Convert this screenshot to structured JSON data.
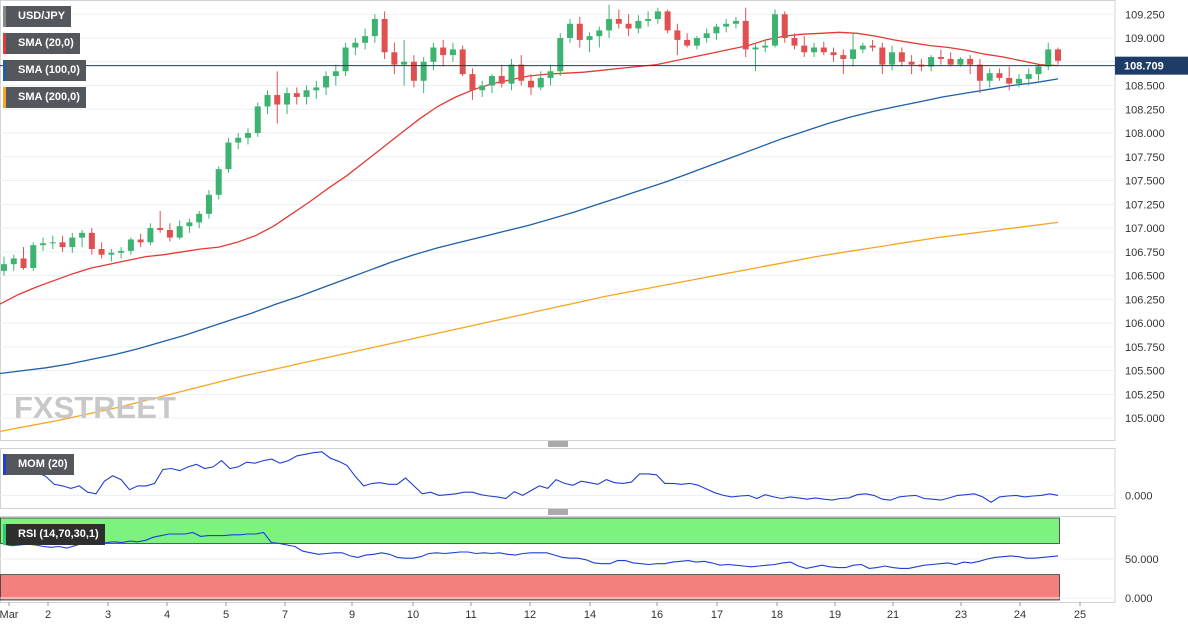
{
  "legend": {
    "symbol": "USD/JPY",
    "sma20": "SMA (20,0)",
    "sma100": "SMA (100,0)",
    "sma200": "SMA (200,0)",
    "mom": "MOM (20)",
    "rsi": "RSI (14,70,30,1)"
  },
  "watermark": "FXSTREET",
  "colors": {
    "up": "#3cb371",
    "down": "#e05050",
    "sma20": "#e53935",
    "sma100": "#1f5fa8",
    "sma200": "#f5a623",
    "indicator": "#1f3fd6",
    "rsi_overbought": "#7ef27e",
    "rsi_oversold": "#f47f7f"
  },
  "chart_data": [
    {
      "type": "candlestick",
      "title": "USD/JPY",
      "y_ticks": [
        "105.000",
        "105.250",
        "105.500",
        "105.750",
        "106.000",
        "106.250",
        "106.500",
        "106.750",
        "107.000",
        "107.250",
        "107.500",
        "107.750",
        "108.000",
        "108.250",
        "108.500",
        "108.750",
        "109.000",
        "109.250"
      ],
      "ylim": [
        104.77,
        109.4
      ],
      "x_labels": [
        "Mar",
        "2",
        "3",
        "4",
        "5",
        "7",
        "9",
        "10",
        "11",
        "12",
        "14",
        "16",
        "17",
        "18",
        "19",
        "21",
        "23",
        "24",
        "25"
      ],
      "last_price": "108.709",
      "candles": [
        [
          106.55,
          106.7,
          106.5,
          106.62
        ],
        [
          106.62,
          106.72,
          106.55,
          106.68
        ],
        [
          106.68,
          106.8,
          106.56,
          106.58
        ],
        [
          106.58,
          106.85,
          106.55,
          106.82
        ],
        [
          106.82,
          106.9,
          106.76,
          106.84
        ],
        [
          106.84,
          106.92,
          106.78,
          106.85
        ],
        [
          106.85,
          106.92,
          106.75,
          106.8
        ],
        [
          106.8,
          106.95,
          106.74,
          106.9
        ],
        [
          106.9,
          106.98,
          106.8,
          106.95
        ],
        [
          106.95,
          107.0,
          106.72,
          106.78
        ],
        [
          106.78,
          106.85,
          106.68,
          106.72
        ],
        [
          106.72,
          106.78,
          106.65,
          106.74
        ],
        [
          106.74,
          106.8,
          106.68,
          106.76
        ],
        [
          106.76,
          106.9,
          106.72,
          106.88
        ],
        [
          106.88,
          106.94,
          106.8,
          106.85
        ],
        [
          106.85,
          107.05,
          106.82,
          107.0
        ],
        [
          107.0,
          107.18,
          106.95,
          106.98
        ],
        [
          106.98,
          107.05,
          106.86,
          106.9
        ],
        [
          106.9,
          107.08,
          106.88,
          107.02
        ],
        [
          107.02,
          107.1,
          106.95,
          107.06
        ],
        [
          107.06,
          107.18,
          107.0,
          107.15
        ],
        [
          107.15,
          107.4,
          107.1,
          107.35
        ],
        [
          107.35,
          107.65,
          107.3,
          107.62
        ],
        [
          107.62,
          107.95,
          107.58,
          107.9
        ],
        [
          107.9,
          108.0,
          107.83,
          107.95
        ],
        [
          107.95,
          108.05,
          107.88,
          108.0
        ],
        [
          108.0,
          108.32,
          107.96,
          108.28
        ],
        [
          108.28,
          108.45,
          108.2,
          108.4
        ],
        [
          108.4,
          108.65,
          108.1,
          108.3
        ],
        [
          108.3,
          108.48,
          108.2,
          108.42
        ],
        [
          108.42,
          108.48,
          108.3,
          108.38
        ],
        [
          108.38,
          108.5,
          108.3,
          108.45
        ],
        [
          108.45,
          108.55,
          108.36,
          108.48
        ],
        [
          108.48,
          108.65,
          108.4,
          108.6
        ],
        [
          108.6,
          108.72,
          108.5,
          108.65
        ],
        [
          108.65,
          108.95,
          108.6,
          108.9
        ],
        [
          108.9,
          109.0,
          108.82,
          108.95
        ],
        [
          108.95,
          109.1,
          108.88,
          109.02
        ],
        [
          109.02,
          109.25,
          108.95,
          109.2
        ],
        [
          109.2,
          109.28,
          108.78,
          108.85
        ],
        [
          108.85,
          108.95,
          108.62,
          108.72
        ],
        [
          108.72,
          108.98,
          108.5,
          108.75
        ],
        [
          108.75,
          108.82,
          108.48,
          108.55
        ],
        [
          108.55,
          108.8,
          108.42,
          108.75
        ],
        [
          108.75,
          108.95,
          108.66,
          108.9
        ],
        [
          108.9,
          108.98,
          108.7,
          108.82
        ],
        [
          108.82,
          108.95,
          108.75,
          108.88
        ],
        [
          108.88,
          108.92,
          108.6,
          108.62
        ],
        [
          108.62,
          108.68,
          108.35,
          108.45
        ],
        [
          108.45,
          108.55,
          108.38,
          108.5
        ],
        [
          108.5,
          108.62,
          108.42,
          108.6
        ],
        [
          108.6,
          108.72,
          108.48,
          108.52
        ],
        [
          108.52,
          108.78,
          108.45,
          108.72
        ],
        [
          108.72,
          108.82,
          108.5,
          108.55
        ],
        [
          108.55,
          108.62,
          108.4,
          108.48
        ],
        [
          108.48,
          108.65,
          108.45,
          108.58
        ],
        [
          108.58,
          108.72,
          108.5,
          108.65
        ],
        [
          108.65,
          109.05,
          108.6,
          109.0
        ],
        [
          109.0,
          109.2,
          108.95,
          109.15
        ],
        [
          109.15,
          109.22,
          108.9,
          108.98
        ],
        [
          108.98,
          109.06,
          108.85,
          109.02
        ],
        [
          109.02,
          109.12,
          108.9,
          109.08
        ],
        [
          109.08,
          109.35,
          109.0,
          109.2
        ],
        [
          109.2,
          109.3,
          109.1,
          109.15
        ],
        [
          109.15,
          109.25,
          109.02,
          109.1
        ],
        [
          109.1,
          109.24,
          109.05,
          109.18
        ],
        [
          109.18,
          109.28,
          109.12,
          109.2
        ],
        [
          109.2,
          109.32,
          109.15,
          109.28
        ],
        [
          109.28,
          109.3,
          109.05,
          109.08
        ],
        [
          109.08,
          109.15,
          108.82,
          108.98
        ],
        [
          108.98,
          109.05,
          108.9,
          108.92
        ],
        [
          108.92,
          109.02,
          108.88,
          109.0
        ],
        [
          109.0,
          109.1,
          108.95,
          109.05
        ],
        [
          109.05,
          109.15,
          108.98,
          109.12
        ],
        [
          109.12,
          109.2,
          109.06,
          109.15
        ],
        [
          109.15,
          109.22,
          109.1,
          109.18
        ],
        [
          109.18,
          109.32,
          108.8,
          108.88
        ],
        [
          108.88,
          108.95,
          108.65,
          108.9
        ],
        [
          108.9,
          108.98,
          108.85,
          108.92
        ],
        [
          108.92,
          109.3,
          108.9,
          109.25
        ],
        [
          109.25,
          109.28,
          108.95,
          109.0
        ],
        [
          109.0,
          109.05,
          108.88,
          108.92
        ],
        [
          108.92,
          109.02,
          108.8,
          108.85
        ],
        [
          108.85,
          108.95,
          108.8,
          108.9
        ],
        [
          108.9,
          108.96,
          108.82,
          108.85
        ],
        [
          108.85,
          108.9,
          108.75,
          108.82
        ],
        [
          108.82,
          108.88,
          108.62,
          108.78
        ],
        [
          108.78,
          109.05,
          108.7,
          108.88
        ],
        [
          108.88,
          108.95,
          108.84,
          108.92
        ],
        [
          108.92,
          108.98,
          108.86,
          108.9
        ],
        [
          108.9,
          108.95,
          108.62,
          108.72
        ],
        [
          108.72,
          108.92,
          108.66,
          108.85
        ],
        [
          108.85,
          108.9,
          108.7,
          108.75
        ],
        [
          108.75,
          108.82,
          108.62,
          108.72
        ],
        [
          108.72,
          108.78,
          108.65,
          108.7
        ],
        [
          108.7,
          108.82,
          108.65,
          108.8
        ],
        [
          108.8,
          108.88,
          108.72,
          108.78
        ],
        [
          108.78,
          108.85,
          108.7,
          108.72
        ],
        [
          108.72,
          108.8,
          108.7,
          108.78
        ],
        [
          108.78,
          108.82,
          108.62,
          108.72
        ],
        [
          108.72,
          108.78,
          108.42,
          108.55
        ],
        [
          108.55,
          108.68,
          108.48,
          108.63
        ],
        [
          108.63,
          108.68,
          108.55,
          108.58
        ],
        [
          108.58,
          108.7,
          108.45,
          108.52
        ],
        [
          108.52,
          108.62,
          108.48,
          108.57
        ],
        [
          108.57,
          108.68,
          108.5,
          108.62
        ],
        [
          108.62,
          108.72,
          108.55,
          108.7
        ],
        [
          108.7,
          108.95,
          108.66,
          108.88
        ],
        [
          108.88,
          108.9,
          108.72,
          108.76
        ]
      ],
      "series": [
        {
          "name": "SMA (20,0)",
          "values": [
            106.2,
            106.3,
            106.38,
            106.45,
            106.52,
            106.58,
            106.62,
            106.66,
            106.7,
            106.72,
            106.75,
            106.78,
            106.8,
            106.85,
            106.92,
            107.02,
            107.15,
            107.28,
            107.42,
            107.55,
            107.7,
            107.85,
            108.0,
            108.15,
            108.28,
            108.38,
            108.46,
            108.52,
            108.56,
            108.6,
            108.62,
            108.63,
            108.64,
            108.66,
            108.68,
            108.7,
            108.72,
            108.76,
            108.8,
            108.84,
            108.88,
            108.92,
            108.98,
            109.02,
            109.04,
            109.05,
            109.06,
            109.05,
            109.02,
            108.98,
            108.95,
            108.92,
            108.9,
            108.87,
            108.83,
            108.8,
            108.76,
            108.72,
            108.71
          ]
        },
        {
          "name": "SMA (100,0)",
          "values": [
            105.47,
            105.5,
            105.53,
            105.57,
            105.62,
            105.67,
            105.73,
            105.8,
            105.87,
            105.95,
            106.03,
            106.11,
            106.2,
            106.28,
            106.37,
            106.46,
            106.55,
            106.64,
            106.72,
            106.79,
            106.85,
            106.91,
            106.97,
            107.03,
            107.1,
            107.17,
            107.25,
            107.33,
            107.41,
            107.49,
            107.58,
            107.67,
            107.76,
            107.85,
            107.94,
            108.02,
            108.1,
            108.17,
            108.23,
            108.28,
            108.33,
            108.38,
            108.42,
            108.46,
            108.5,
            108.53,
            108.57
          ]
        },
        {
          "name": "SMA (200,0)",
          "values": [
            104.86,
            104.92,
            104.98,
            105.05,
            105.12,
            105.2,
            105.28,
            105.36,
            105.44,
            105.51,
            105.58,
            105.65,
            105.72,
            105.79,
            105.86,
            105.93,
            106.0,
            106.07,
            106.14,
            106.21,
            106.28,
            106.34,
            106.4,
            106.46,
            106.52,
            106.58,
            106.64,
            106.7,
            106.75,
            106.8,
            106.85,
            106.9,
            106.94,
            106.98,
            107.02,
            107.06
          ]
        }
      ]
    },
    {
      "type": "line",
      "title": "MOM (20)",
      "y_ticks": [
        "0.000"
      ],
      "ylim": [
        -0.4,
        1.5
      ],
      "values": [
        0.78,
        0.72,
        0.75,
        0.78,
        0.72,
        0.6,
        0.35,
        0.3,
        0.22,
        0.3,
        0.1,
        0.05,
        0.45,
        0.62,
        0.5,
        0.18,
        0.3,
        0.3,
        0.38,
        0.82,
        0.85,
        0.78,
        0.9,
        0.98,
        0.85,
        0.9,
        1.1,
        0.85,
        0.9,
        1.05,
        1.02,
        1.1,
        1.15,
        1.02,
        1.1,
        1.25,
        1.3,
        1.35,
        1.38,
        1.18,
        1.08,
        0.95,
        0.6,
        0.3,
        0.38,
        0.4,
        0.35,
        0.35,
        0.55,
        0.3,
        0.05,
        0.1,
        0.0,
        0.02,
        0.05,
        0.1,
        0.1,
        0.02,
        -0.02,
        -0.05,
        -0.1,
        0.12,
        0.0,
        0.15,
        0.3,
        0.22,
        0.5,
        0.38,
        0.32,
        0.45,
        0.4,
        0.35,
        0.5,
        0.4,
        0.38,
        0.42,
        0.68,
        0.68,
        0.65,
        0.38,
        0.38,
        0.35,
        0.38,
        0.32,
        0.2,
        0.08,
        0.0,
        -0.05,
        -0.02,
        0.0,
        -0.1,
        0.02,
        -0.05,
        -0.1,
        -0.05,
        -0.08,
        -0.12,
        -0.08,
        -0.12,
        -0.15,
        -0.1,
        -0.08,
        0.02,
        0.05,
        0.0,
        -0.12,
        -0.15,
        -0.05,
        -0.02,
        0.0,
        -0.1,
        -0.12,
        -0.15,
        -0.08,
        0.0,
        0.02,
        0.05,
        -0.05,
        -0.22,
        -0.05,
        -0.02,
        0.0,
        -0.05,
        -0.02,
        0.0,
        0.05,
        0.0
      ]
    },
    {
      "type": "line",
      "title": "RSI (14,70,30,1)",
      "y_ticks": [
        "50.000",
        "0.000"
      ],
      "ylim": [
        0,
        100
      ],
      "overbought": 70,
      "oversold": 30,
      "values": [
        69,
        67,
        68,
        69,
        68,
        66,
        65,
        66,
        64,
        67,
        70,
        69,
        69,
        71,
        72,
        71,
        73,
        72,
        74,
        78,
        80,
        82,
        82,
        82,
        84,
        79,
        80,
        80,
        80,
        81,
        81,
        82,
        82,
        84,
        71,
        70,
        68,
        66,
        60,
        58,
        56,
        57,
        58,
        58,
        54,
        52,
        55,
        56,
        58,
        56,
        52,
        51,
        51,
        53,
        57,
        58,
        57,
        58,
        59,
        59,
        57,
        58,
        57,
        58,
        56,
        55,
        57,
        58,
        58,
        58,
        55,
        52,
        51,
        51,
        49,
        45,
        44,
        44,
        48,
        48,
        45,
        44,
        43,
        44,
        44,
        46,
        47,
        48,
        46,
        47,
        45,
        42,
        43,
        42,
        41,
        40,
        41,
        42,
        43,
        45,
        46,
        41,
        38,
        40,
        42,
        40,
        39,
        39,
        42,
        43,
        38,
        39,
        41,
        39,
        38,
        38,
        40,
        42,
        43,
        44,
        45,
        43,
        46,
        45,
        47,
        50,
        52,
        53,
        54,
        53,
        51,
        51,
        52,
        53,
        54
      ]
    }
  ]
}
